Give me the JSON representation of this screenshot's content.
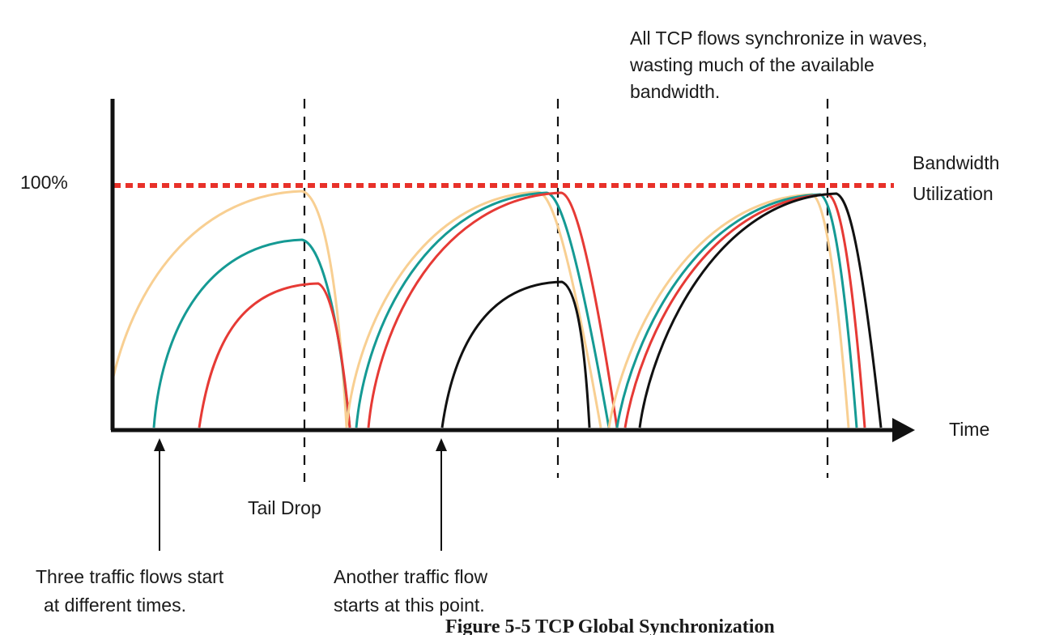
{
  "diagram": {
    "y_tick_label": "100%",
    "x_axis_label": "Time",
    "threshold_label_line1": "Bandwidth",
    "threshold_label_line2": "Utilization",
    "sync_note_line1": "All TCP flows synchronize in waves,",
    "sync_note_line2": "wasting much of the available",
    "sync_note_line3": "bandwidth.",
    "tail_drop_label": "Tail Drop",
    "three_flows_line1": "Three traffic flows start",
    "three_flows_line2": "at different times.",
    "another_flow_line1": "Another traffic flow",
    "another_flow_line2": "starts at this point.",
    "caption": "Figure 5-5 TCP Global Synchronization"
  },
  "colors": {
    "threshold": "#e8312a",
    "flow_peach": "#f8cf92",
    "flow_teal": "#159a94",
    "flow_red": "#e63a35",
    "flow_black": "#111111",
    "axis": "#111111"
  }
}
